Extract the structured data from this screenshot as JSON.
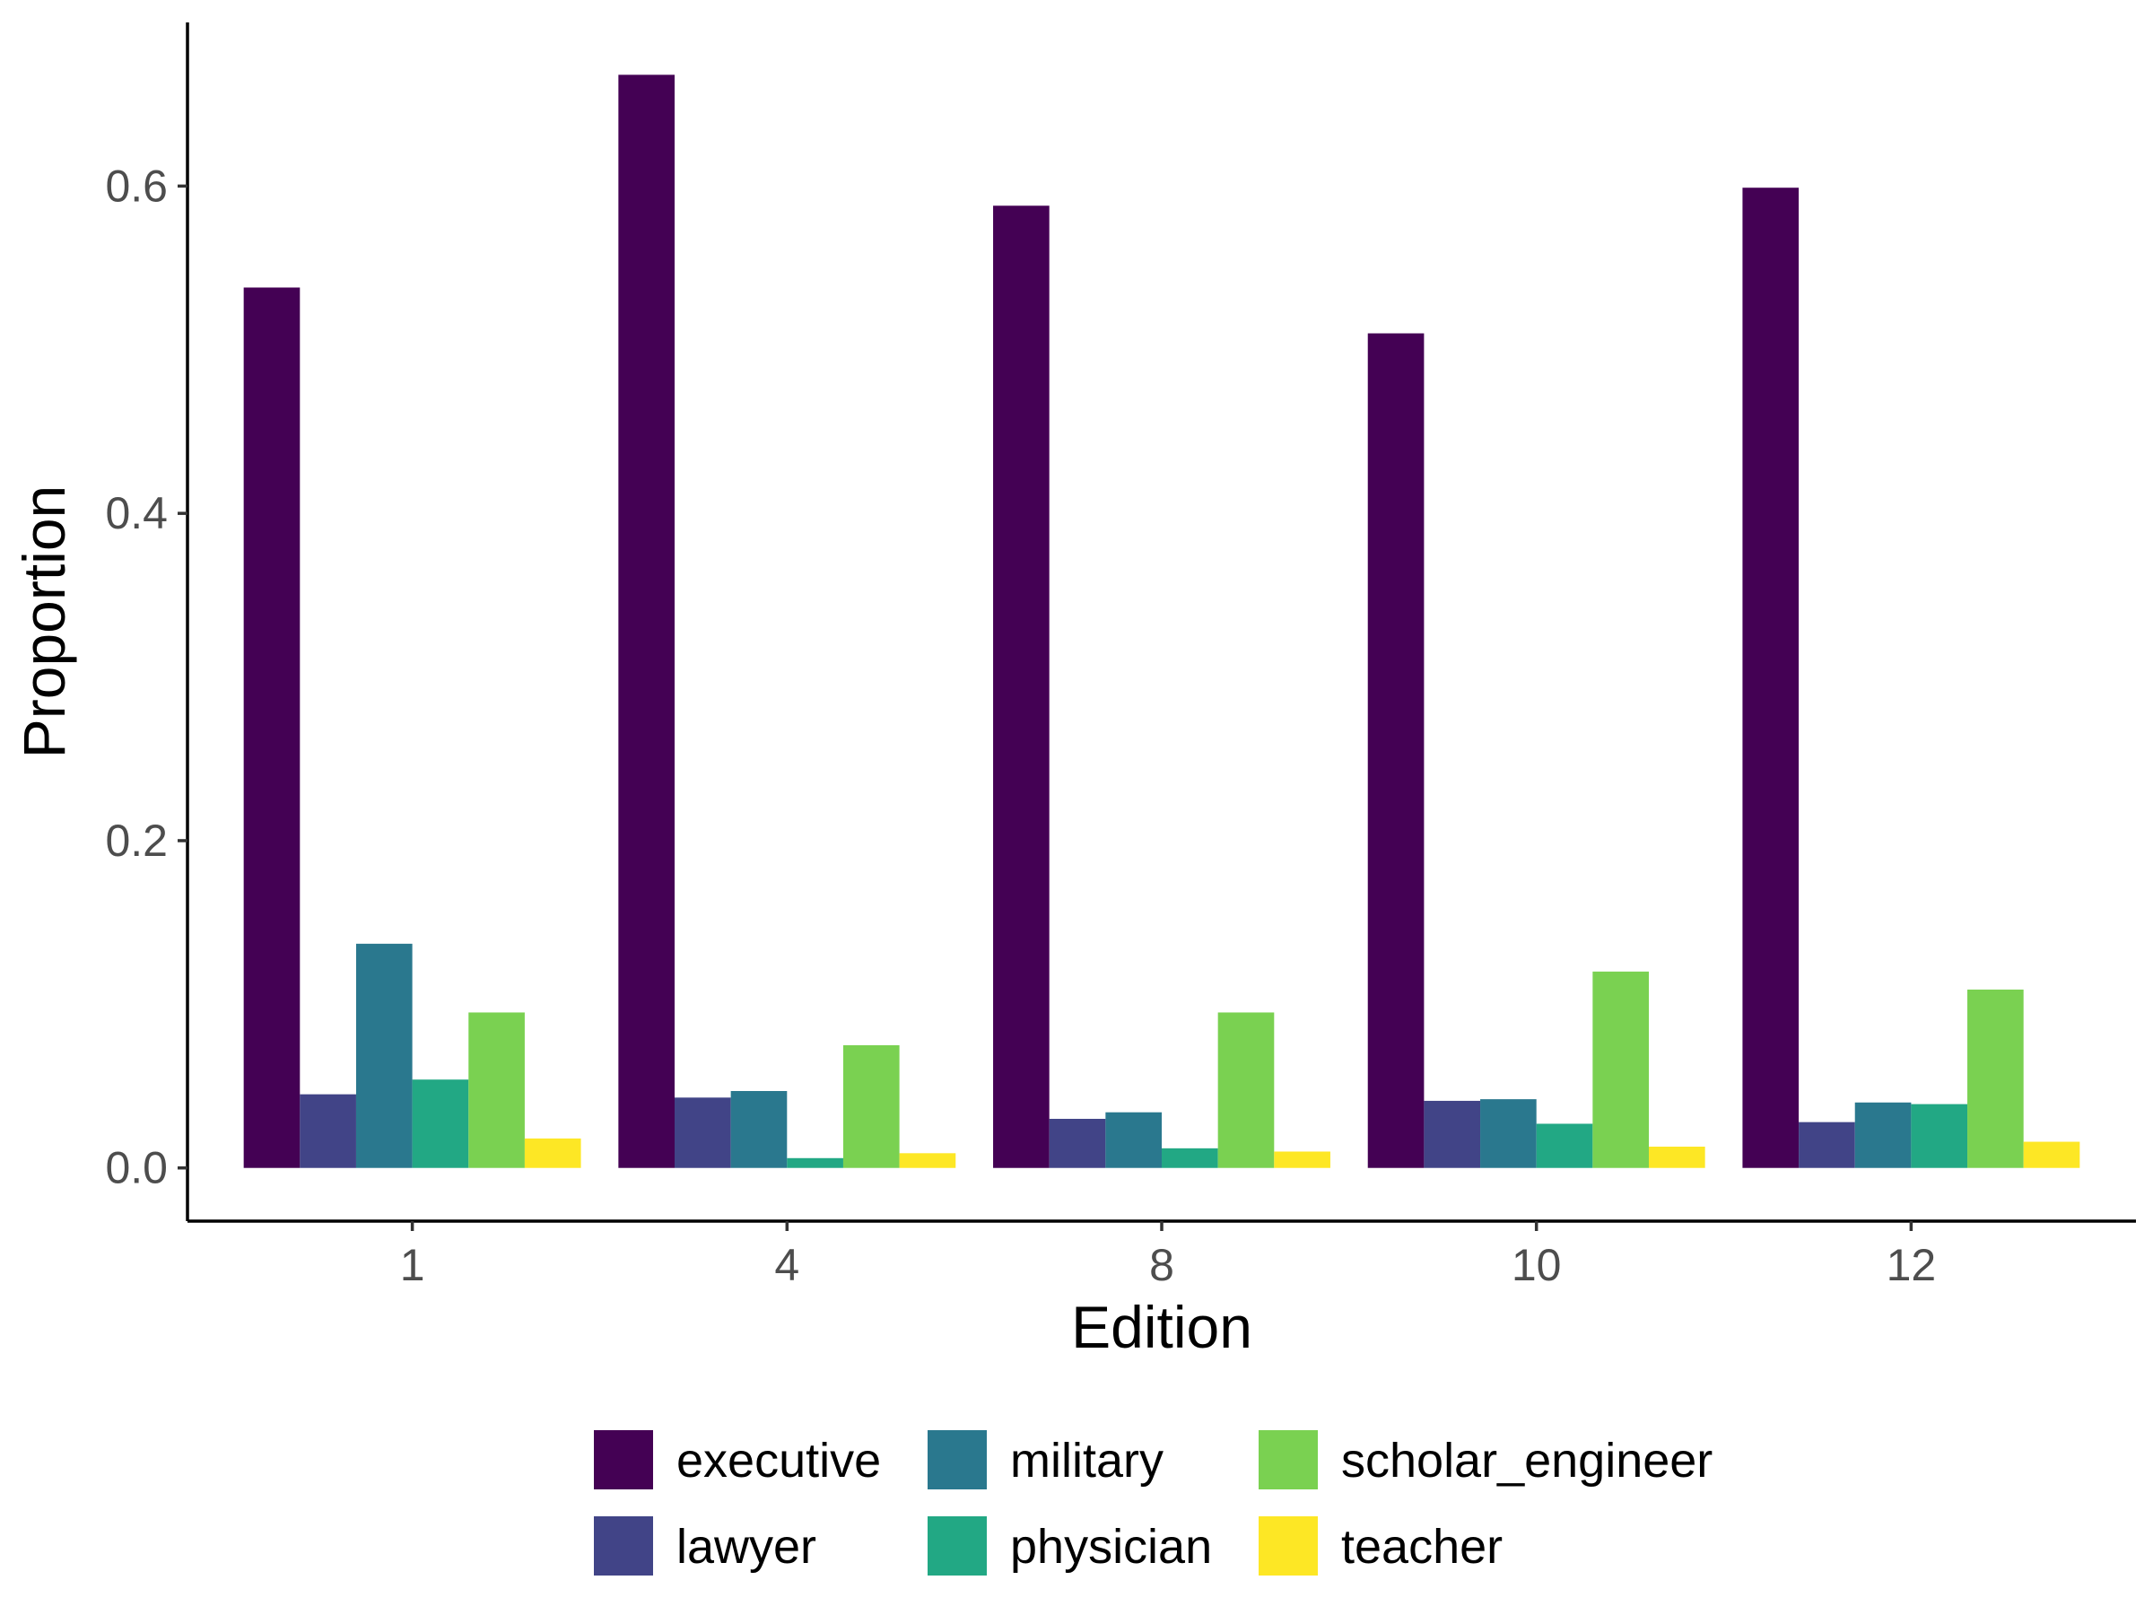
{
  "chart_data": {
    "type": "bar",
    "title": "",
    "xlabel": "Edition",
    "ylabel": "Proportion",
    "categories": [
      "1",
      "4",
      "8",
      "10",
      "12"
    ],
    "ylim": [
      -0.0325,
      0.7
    ],
    "yticks": [
      "0.0",
      "0.2",
      "0.4",
      "0.6"
    ],
    "ytick_values": [
      0.0,
      0.2,
      0.4,
      0.6
    ],
    "grid": false,
    "legend_position": "bottom",
    "series": [
      {
        "name": "executive",
        "color": "#440154",
        "values": [
          0.538,
          0.668,
          0.588,
          0.51,
          0.599
        ]
      },
      {
        "name": "lawyer",
        "color": "#414487",
        "values": [
          0.045,
          0.043,
          0.03,
          0.041,
          0.028
        ]
      },
      {
        "name": "military",
        "color": "#2A788E",
        "values": [
          0.137,
          0.047,
          0.034,
          0.042,
          0.04
        ]
      },
      {
        "name": "physician",
        "color": "#22A884",
        "values": [
          0.054,
          0.006,
          0.012,
          0.027,
          0.039
        ]
      },
      {
        "name": "scholar_engineer",
        "color": "#7AD151",
        "values": [
          0.095,
          0.075,
          0.095,
          0.12,
          0.109
        ]
      },
      {
        "name": "teacher",
        "color": "#FDE725",
        "values": [
          0.018,
          0.009,
          0.01,
          0.013,
          0.016
        ]
      }
    ]
  }
}
